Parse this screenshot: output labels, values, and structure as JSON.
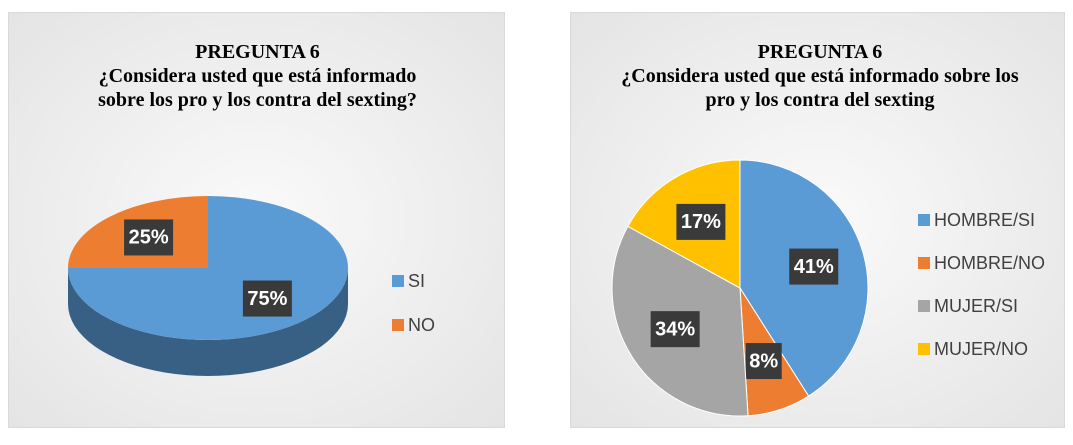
{
  "chart_data": [
    {
      "type": "pie",
      "three_d": true,
      "title": "PREGUNTA 6",
      "subtitle": "¿Considera usted que está informado sobre los pro y los contra del sexting?",
      "categories": [
        "SI",
        "NO"
      ],
      "values": [
        75,
        25
      ],
      "value_labels": [
        "75%",
        "25%"
      ],
      "colors": [
        "#5b9bd5",
        "#ed7d31"
      ],
      "legend": "right"
    },
    {
      "type": "pie",
      "three_d": false,
      "title": "PREGUNTA 6",
      "subtitle": "¿Considera usted que está informado sobre los pro y los contra del sexting",
      "categories": [
        "HOMBRE/SI",
        "HOMBRE/NO",
        "MUJER/SI",
        "MUJER/NO"
      ],
      "values": [
        41,
        8,
        34,
        17
      ],
      "value_labels": [
        "41%",
        "8%",
        "34%",
        "17%"
      ],
      "colors": [
        "#5b9bd5",
        "#ed7d31",
        "#a5a5a5",
        "#ffc000"
      ],
      "legend": "right"
    }
  ]
}
